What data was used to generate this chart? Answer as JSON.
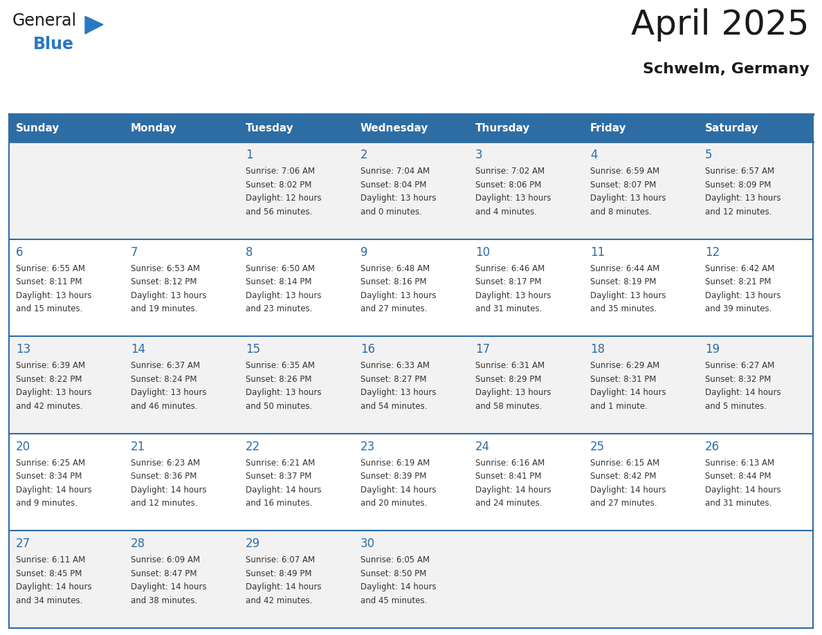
{
  "title": "April 2025",
  "subtitle": "Schwelm, Germany",
  "header_bg": "#2E6DA4",
  "header_text_color": "#FFFFFF",
  "cell_bg_even": "#F2F2F2",
  "cell_bg_odd": "#FFFFFF",
  "day_names": [
    "Sunday",
    "Monday",
    "Tuesday",
    "Wednesday",
    "Thursday",
    "Friday",
    "Saturday"
  ],
  "text_color": "#333333",
  "day_num_color": "#2E6DA4",
  "border_color": "#2E6DA4",
  "line_color_row": "#2E6DA4",
  "weeks": [
    [
      {
        "day": "",
        "info": ""
      },
      {
        "day": "",
        "info": ""
      },
      {
        "day": "1",
        "info": "Sunrise: 7:06 AM\nSunset: 8:02 PM\nDaylight: 12 hours\nand 56 minutes."
      },
      {
        "day": "2",
        "info": "Sunrise: 7:04 AM\nSunset: 8:04 PM\nDaylight: 13 hours\nand 0 minutes."
      },
      {
        "day": "3",
        "info": "Sunrise: 7:02 AM\nSunset: 8:06 PM\nDaylight: 13 hours\nand 4 minutes."
      },
      {
        "day": "4",
        "info": "Sunrise: 6:59 AM\nSunset: 8:07 PM\nDaylight: 13 hours\nand 8 minutes."
      },
      {
        "day": "5",
        "info": "Sunrise: 6:57 AM\nSunset: 8:09 PM\nDaylight: 13 hours\nand 12 minutes."
      }
    ],
    [
      {
        "day": "6",
        "info": "Sunrise: 6:55 AM\nSunset: 8:11 PM\nDaylight: 13 hours\nand 15 minutes."
      },
      {
        "day": "7",
        "info": "Sunrise: 6:53 AM\nSunset: 8:12 PM\nDaylight: 13 hours\nand 19 minutes."
      },
      {
        "day": "8",
        "info": "Sunrise: 6:50 AM\nSunset: 8:14 PM\nDaylight: 13 hours\nand 23 minutes."
      },
      {
        "day": "9",
        "info": "Sunrise: 6:48 AM\nSunset: 8:16 PM\nDaylight: 13 hours\nand 27 minutes."
      },
      {
        "day": "10",
        "info": "Sunrise: 6:46 AM\nSunset: 8:17 PM\nDaylight: 13 hours\nand 31 minutes."
      },
      {
        "day": "11",
        "info": "Sunrise: 6:44 AM\nSunset: 8:19 PM\nDaylight: 13 hours\nand 35 minutes."
      },
      {
        "day": "12",
        "info": "Sunrise: 6:42 AM\nSunset: 8:21 PM\nDaylight: 13 hours\nand 39 minutes."
      }
    ],
    [
      {
        "day": "13",
        "info": "Sunrise: 6:39 AM\nSunset: 8:22 PM\nDaylight: 13 hours\nand 42 minutes."
      },
      {
        "day": "14",
        "info": "Sunrise: 6:37 AM\nSunset: 8:24 PM\nDaylight: 13 hours\nand 46 minutes."
      },
      {
        "day": "15",
        "info": "Sunrise: 6:35 AM\nSunset: 8:26 PM\nDaylight: 13 hours\nand 50 minutes."
      },
      {
        "day": "16",
        "info": "Sunrise: 6:33 AM\nSunset: 8:27 PM\nDaylight: 13 hours\nand 54 minutes."
      },
      {
        "day": "17",
        "info": "Sunrise: 6:31 AM\nSunset: 8:29 PM\nDaylight: 13 hours\nand 58 minutes."
      },
      {
        "day": "18",
        "info": "Sunrise: 6:29 AM\nSunset: 8:31 PM\nDaylight: 14 hours\nand 1 minute."
      },
      {
        "day": "19",
        "info": "Sunrise: 6:27 AM\nSunset: 8:32 PM\nDaylight: 14 hours\nand 5 minutes."
      }
    ],
    [
      {
        "day": "20",
        "info": "Sunrise: 6:25 AM\nSunset: 8:34 PM\nDaylight: 14 hours\nand 9 minutes."
      },
      {
        "day": "21",
        "info": "Sunrise: 6:23 AM\nSunset: 8:36 PM\nDaylight: 14 hours\nand 12 minutes."
      },
      {
        "day": "22",
        "info": "Sunrise: 6:21 AM\nSunset: 8:37 PM\nDaylight: 14 hours\nand 16 minutes."
      },
      {
        "day": "23",
        "info": "Sunrise: 6:19 AM\nSunset: 8:39 PM\nDaylight: 14 hours\nand 20 minutes."
      },
      {
        "day": "24",
        "info": "Sunrise: 6:16 AM\nSunset: 8:41 PM\nDaylight: 14 hours\nand 24 minutes."
      },
      {
        "day": "25",
        "info": "Sunrise: 6:15 AM\nSunset: 8:42 PM\nDaylight: 14 hours\nand 27 minutes."
      },
      {
        "day": "26",
        "info": "Sunrise: 6:13 AM\nSunset: 8:44 PM\nDaylight: 14 hours\nand 31 minutes."
      }
    ],
    [
      {
        "day": "27",
        "info": "Sunrise: 6:11 AM\nSunset: 8:45 PM\nDaylight: 14 hours\nand 34 minutes."
      },
      {
        "day": "28",
        "info": "Sunrise: 6:09 AM\nSunset: 8:47 PM\nDaylight: 14 hours\nand 38 minutes."
      },
      {
        "day": "29",
        "info": "Sunrise: 6:07 AM\nSunset: 8:49 PM\nDaylight: 14 hours\nand 42 minutes."
      },
      {
        "day": "30",
        "info": "Sunrise: 6:05 AM\nSunset: 8:50 PM\nDaylight: 14 hours\nand 45 minutes."
      },
      {
        "day": "",
        "info": ""
      },
      {
        "day": "",
        "info": ""
      },
      {
        "day": "",
        "info": ""
      }
    ]
  ],
  "logo_text1": "General",
  "logo_text2": "Blue",
  "logo_color1": "#1a1a1a",
  "logo_color2": "#2979C2",
  "logo_triangle_color": "#2979C2",
  "title_fontsize": 36,
  "subtitle_fontsize": 16,
  "header_fontsize": 11,
  "daynum_fontsize": 12,
  "info_fontsize": 8.5
}
